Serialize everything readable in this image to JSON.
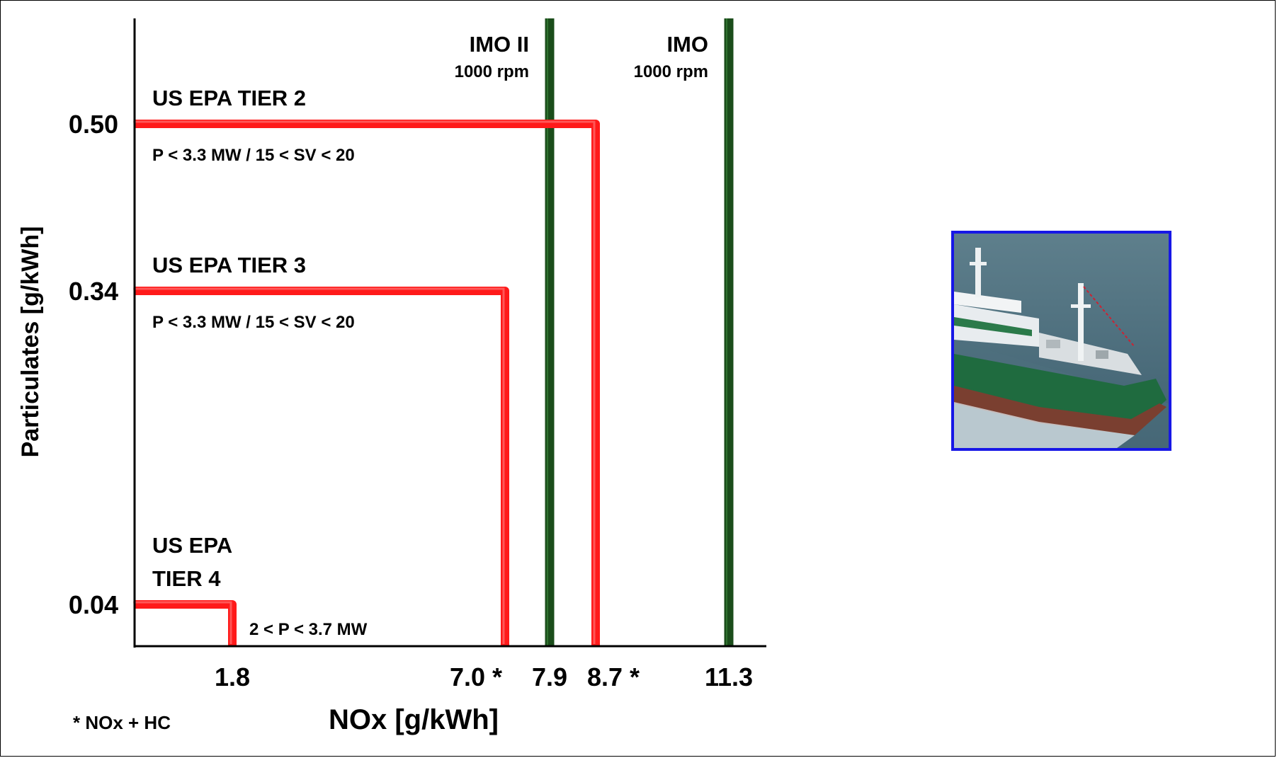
{
  "chart_data": {
    "type": "line",
    "xlabel": "NOx [g/kWh]",
    "ylabel": "Particulates [g/kWh]",
    "x_ticks": [
      "1.8",
      "7.0 *",
      "7.9",
      "8.7 *",
      "11.3"
    ],
    "y_ticks": [
      "0.50",
      "0.34",
      "0.04"
    ],
    "footnote": "*  NOx + HC",
    "limit_color": "#ff1a1a",
    "imo_color": "#1b4d1b",
    "limits": [
      {
        "name": "US EPA TIER 2",
        "name_lines": [
          "US EPA TIER 2"
        ],
        "note": "P < 3.3 MW  /  15 < SV < 20",
        "nox": 8.7,
        "pm": 0.5
      },
      {
        "name": "US EPA TIER 3",
        "name_lines": [
          "US EPA TIER 3"
        ],
        "note": "P < 3.3 MW  /  15 < SV < 20",
        "nox": 7.0,
        "pm": 0.34
      },
      {
        "name": "US EPA TIER 4",
        "name_lines": [
          "US EPA",
          "TIER 4"
        ],
        "note": "2 < P < 3.7 MW",
        "nox": 1.8,
        "pm": 0.04
      }
    ],
    "imo_limits": [
      {
        "name": "IMO II",
        "speed": "1000 rpm",
        "nox": 7.9
      },
      {
        "name": "IMO",
        "speed": "1000 rpm",
        "nox": 11.3
      }
    ]
  },
  "image": {
    "subject": "fishing-vessel-photo"
  }
}
